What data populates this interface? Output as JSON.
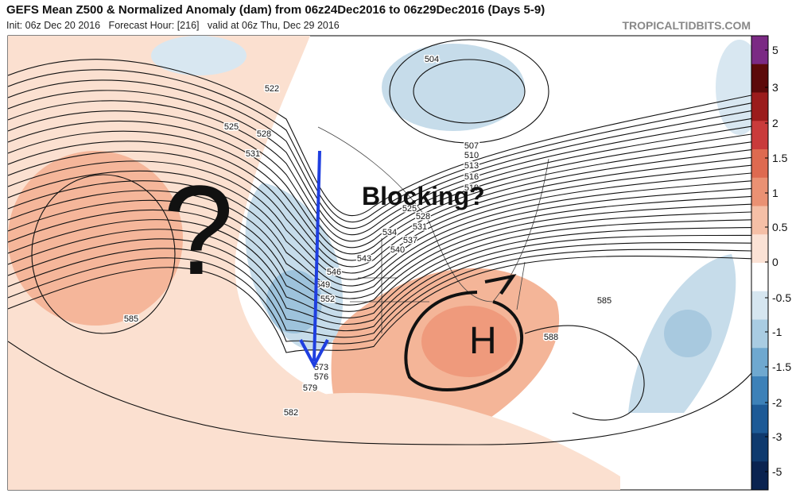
{
  "header": {
    "title": "GEFS Mean Z500 & Normalized Anomaly (dam) from 06z24Dec2016 to 06z29Dec2016 (Days 5-9)",
    "subtitle": "Init: 06z Dec 20 2016   Forecast Hour: [216]   valid at 06z Thu, Dec 29 2016",
    "credit": "TROPICALTIDBITS.COM"
  },
  "colorbar": {
    "ticks": [
      5,
      3,
      2,
      1.5,
      1,
      0.5,
      0,
      -0.5,
      -1,
      -1.5,
      -2,
      -3,
      -5
    ]
  },
  "annotations": {
    "blocking": "Blocking?",
    "question": "?",
    "high": "H"
  },
  "contour_labels": [
    504,
    507,
    510,
    513,
    516,
    519,
    522,
    525,
    528,
    531,
    525,
    528,
    531,
    534,
    537,
    540,
    543,
    546,
    549,
    552,
    573,
    576,
    579,
    582,
    585,
    585,
    588
  ]
}
